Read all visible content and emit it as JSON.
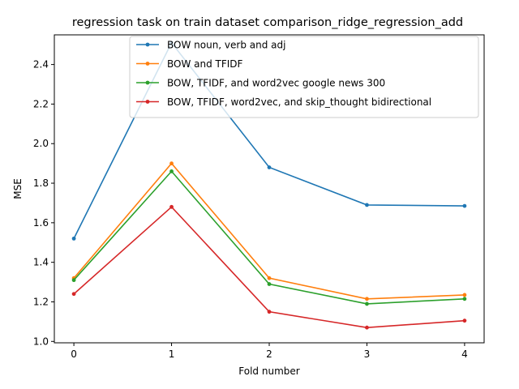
{
  "chart_data": {
    "type": "line",
    "title": "regression task on train dataset comparison_ridge_regression_add",
    "xlabel": "Fold number",
    "ylabel": "MSE",
    "x": [
      0,
      1,
      2,
      3,
      4
    ],
    "xticks": [
      "0",
      "1",
      "2",
      "3",
      "4"
    ],
    "yticks": [
      "1.0",
      "1.2",
      "1.4",
      "1.6",
      "1.8",
      "2.0",
      "2.2",
      "2.4"
    ],
    "xlim": [
      -0.2,
      4.2
    ],
    "ylim": [
      0.993,
      2.55
    ],
    "grid": false,
    "legend_position": "top-center",
    "series": [
      {
        "name": "BOW noun, verb and adj",
        "color": "#1f77b4",
        "values": [
          1.52,
          2.51,
          1.88,
          1.69,
          1.685
        ]
      },
      {
        "name": "BOW and TFIDF",
        "color": "#ff7f0e",
        "values": [
          1.32,
          1.9,
          1.32,
          1.215,
          1.235
        ]
      },
      {
        "name": "BOW, TFIDF, and word2vec google news 300",
        "color": "#2ca02c",
        "values": [
          1.31,
          1.86,
          1.29,
          1.19,
          1.215
        ]
      },
      {
        "name": "BOW, TFIDF, word2vec, and skip_thought bidirectional",
        "color": "#d62728",
        "values": [
          1.24,
          1.68,
          1.15,
          1.07,
          1.105
        ]
      }
    ]
  }
}
